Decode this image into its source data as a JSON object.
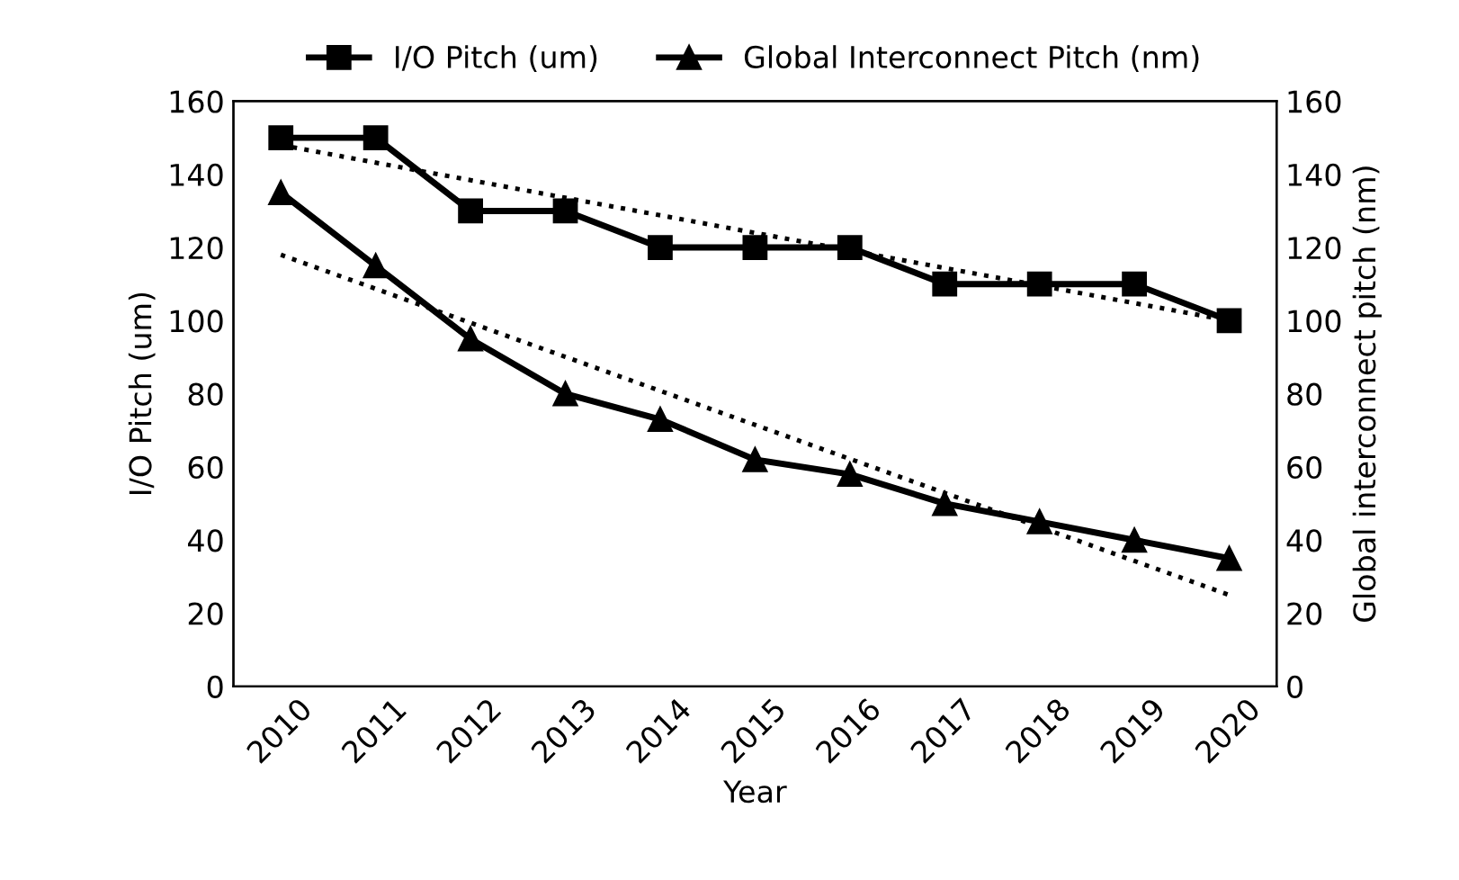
{
  "chart_data": {
    "type": "line",
    "xlabel": "Year",
    "ylabel": "I/O Pitch (um)",
    "y2label": "Global interconnect pitch (nm)",
    "categories": [
      "2010",
      "2011",
      "2012",
      "2013",
      "2014",
      "2015",
      "2016",
      "2017",
      "2018",
      "2019",
      "2020"
    ],
    "series": [
      {
        "name": "I/O Pitch (um)",
        "color": "#000000",
        "marker": "square",
        "line_style": "solid",
        "values": [
          150,
          150,
          130,
          130,
          120,
          120,
          120,
          110,
          110,
          110,
          100
        ]
      },
      {
        "name": "Global Interconnect Pitch (nm)",
        "color": "#000000",
        "marker": "triangle",
        "line_style": "solid",
        "values": [
          135,
          115,
          95,
          80,
          73,
          62,
          58,
          50,
          45,
          40,
          35
        ]
      },
      {
        "type": "line",
        "color": "#000000",
        "marker": "none",
        "line_style": "dotted",
        "values": [
          148,
          143.2,
          138.4,
          133.6,
          128.8,
          124,
          119.2,
          114.4,
          109.6,
          104.8,
          100
        ]
      },
      {
        "type": "line",
        "color": "#000000",
        "marker": "none",
        "line_style": "dotted",
        "values": [
          118,
          108.7,
          99.4,
          90.1,
          80.8,
          71.5,
          62.2,
          52.9,
          43.6,
          34.3,
          25
        ]
      }
    ],
    "ylim": [
      0,
      160
    ],
    "yticks": [
      0,
      20,
      40,
      60,
      80,
      100,
      120,
      140,
      160
    ],
    "y2lim": [
      0,
      160
    ],
    "y2ticks": [
      0,
      20,
      40,
      60,
      80,
      100,
      120,
      140,
      160
    ],
    "grid": false,
    "legend": "top"
  }
}
